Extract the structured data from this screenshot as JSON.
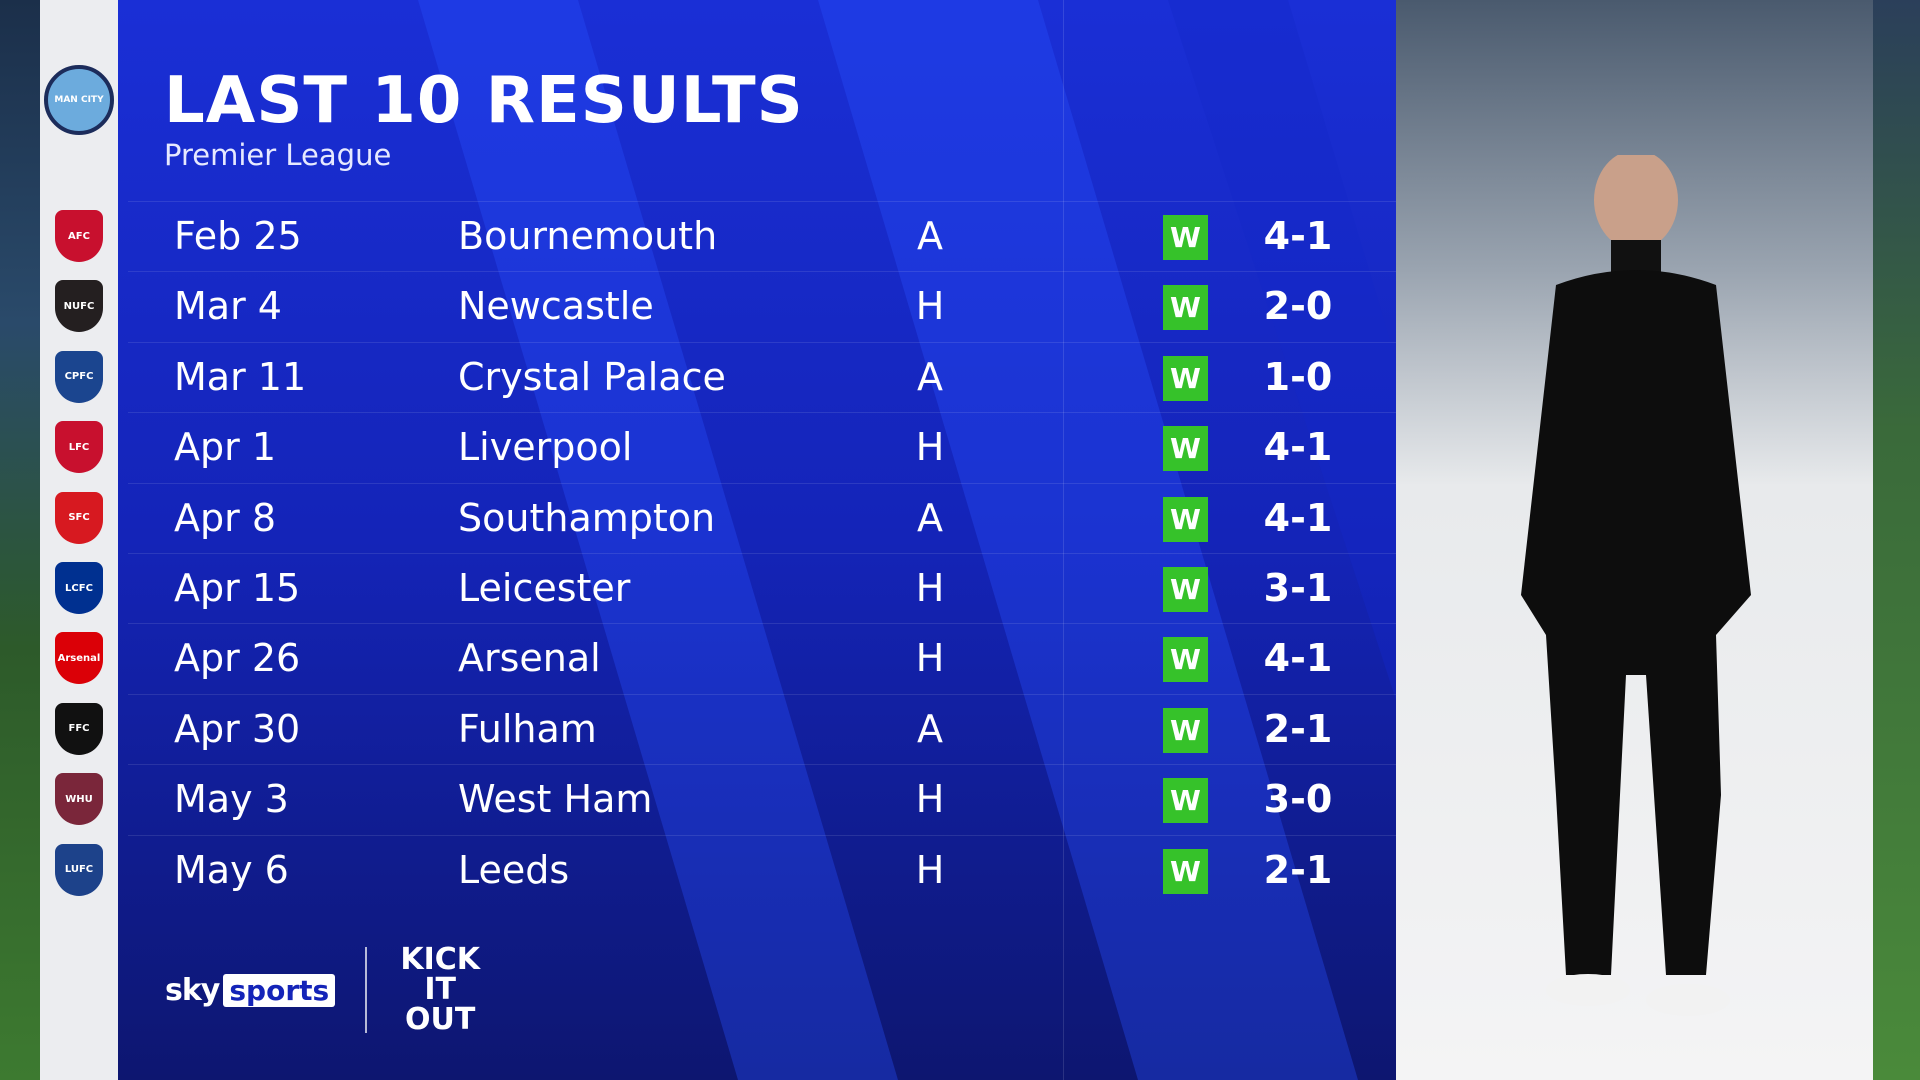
{
  "header": {
    "title": "LAST 10 RESULTS",
    "subtitle": "Premier League"
  },
  "team": {
    "badge": "MAN CITY",
    "badge_icon": "manchester-city-crest"
  },
  "results": [
    {
      "date": "Feb 25",
      "opponent": "Bournemouth",
      "venue": "A",
      "result": "W",
      "score": "4-1",
      "badge_color": "#c8102e",
      "badge_text": "AFC"
    },
    {
      "date": "Mar 4",
      "opponent": "Newcastle",
      "venue": "H",
      "result": "W",
      "score": "2-0",
      "badge_color": "#241f20",
      "badge_text": "NUFC"
    },
    {
      "date": "Mar 11",
      "opponent": "Crystal Palace",
      "venue": "A",
      "result": "W",
      "score": "1-0",
      "badge_color": "#1b458f",
      "badge_text": "CPFC"
    },
    {
      "date": "Apr 1",
      "opponent": "Liverpool",
      "venue": "H",
      "result": "W",
      "score": "4-1",
      "badge_color": "#c8102e",
      "badge_text": "LFC"
    },
    {
      "date": "Apr 8",
      "opponent": "Southampton",
      "venue": "A",
      "result": "W",
      "score": "4-1",
      "badge_color": "#d71920",
      "badge_text": "SFC"
    },
    {
      "date": "Apr 15",
      "opponent": "Leicester",
      "venue": "H",
      "result": "W",
      "score": "3-1",
      "badge_color": "#003090",
      "badge_text": "LCFC"
    },
    {
      "date": "Apr 26",
      "opponent": "Arsenal",
      "venue": "H",
      "result": "W",
      "score": "4-1",
      "badge_color": "#db0007",
      "badge_text": "Arsenal"
    },
    {
      "date": "Apr 30",
      "opponent": "Fulham",
      "venue": "A",
      "result": "W",
      "score": "2-1",
      "badge_color": "#111111",
      "badge_text": "FFC"
    },
    {
      "date": "May 3",
      "opponent": "West Ham",
      "venue": "H",
      "result": "W",
      "score": "3-0",
      "badge_color": "#7a263a",
      "badge_text": "WHU"
    },
    {
      "date": "May 6",
      "opponent": "Leeds",
      "venue": "H",
      "result": "W",
      "score": "2-1",
      "badge_color": "#1d428a",
      "badge_text": "LUFC"
    }
  ],
  "colors": {
    "panel": "#1424b8",
    "win": "#36c22a"
  },
  "branding": {
    "sky": "sky",
    "sports": "sports",
    "kick_it_out": "KICK IT OUT"
  }
}
